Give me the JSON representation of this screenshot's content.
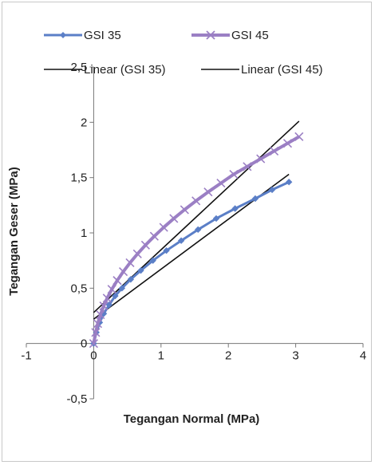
{
  "chart_data": {
    "type": "scatter",
    "title": "",
    "xlabel": "Tegangan Normal (MPa)",
    "ylabel": "Tegangan Geser (MPa)",
    "xlim": [
      -1,
      4
    ],
    "ylim": [
      -0.5,
      2.5
    ],
    "x_ticks": [
      "-1",
      "0",
      "1",
      "2",
      "3",
      "4"
    ],
    "y_ticks": [
      "-0,5",
      "0",
      "0,5",
      "1",
      "1,5",
      "2",
      "2,5"
    ],
    "legend_position": "top",
    "series": [
      {
        "name": "GSI 35",
        "kind": "data",
        "color": "#5b7fc7",
        "marker": "diamond",
        "x": [
          0,
          0.04,
          0.09,
          0.15,
          0.23,
          0.32,
          0.42,
          0.55,
          0.7,
          0.88,
          1.08,
          1.3,
          1.55,
          1.82,
          2.1,
          2.4,
          2.65,
          2.9
        ],
        "y": [
          0,
          0.1,
          0.19,
          0.27,
          0.35,
          0.43,
          0.5,
          0.58,
          0.66,
          0.75,
          0.84,
          0.93,
          1.03,
          1.13,
          1.22,
          1.31,
          1.39,
          1.46
        ]
      },
      {
        "name": "GSI 45",
        "kind": "data",
        "color": "#9b7fc4",
        "marker": "x",
        "x": [
          0,
          0.03,
          0.06,
          0.1,
          0.15,
          0.2,
          0.27,
          0.35,
          0.44,
          0.54,
          0.65,
          0.77,
          0.9,
          1.04,
          1.19,
          1.35,
          1.52,
          1.7,
          1.89,
          2.08,
          2.28,
          2.48,
          2.68,
          2.88,
          3.05
        ],
        "y": [
          0,
          0.1,
          0.18,
          0.26,
          0.34,
          0.41,
          0.49,
          0.57,
          0.65,
          0.73,
          0.81,
          0.89,
          0.97,
          1.05,
          1.13,
          1.21,
          1.29,
          1.37,
          1.45,
          1.53,
          1.6,
          1.67,
          1.74,
          1.81,
          1.87
        ]
      },
      {
        "name": "Linear (GSI 35)",
        "kind": "trendline",
        "color": "#111111",
        "x": [
          0,
          2.9
        ],
        "y": [
          0.22,
          1.53
        ]
      },
      {
        "name": "Linear (GSI 45)",
        "kind": "trendline",
        "color": "#111111",
        "x": [
          0,
          3.05
        ],
        "y": [
          0.28,
          2.01
        ]
      }
    ]
  }
}
